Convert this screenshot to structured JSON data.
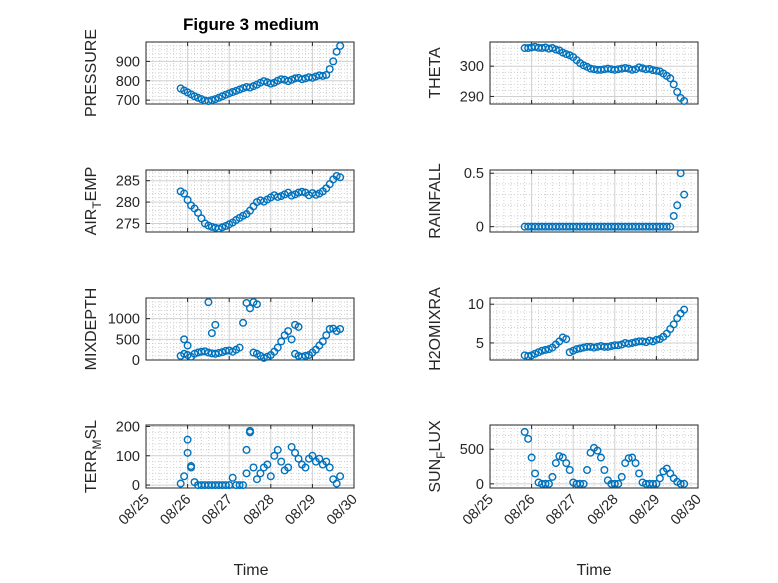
{
  "figure": {
    "title": "Figure 3 medium",
    "xlabel": "Time",
    "x_tick_labels": [
      "08/25",
      "08/26",
      "08/27",
      "08/28",
      "08/29",
      "08/30"
    ]
  },
  "colors": {
    "marker": "#0072BD",
    "axes": "#262626",
    "grid": "#d0d0d0",
    "background": "#ffffff"
  },
  "chart_data": [
    {
      "type": "scatter",
      "name": "PRESSURE",
      "title": "Figure 3 medium",
      "ylabel": "PRESSURE",
      "xlabel": "",
      "xlim": [
        "2021-08-25",
        "2021-08-30"
      ],
      "ylim": [
        680,
        1000
      ],
      "yticks": [
        700,
        800,
        900
      ],
      "ytick_labels": [
        "700",
        "800",
        "900"
      ],
      "grid": true,
      "x_dates": [
        "2021-08-25 20:00",
        "2021-08-25 22:00",
        "2021-08-26 00:00",
        "2021-08-26 02:00",
        "2021-08-26 04:00",
        "2021-08-26 06:00",
        "2021-08-26 08:00",
        "2021-08-26 10:00",
        "2021-08-26 12:00",
        "2021-08-26 14:00",
        "2021-08-26 16:00",
        "2021-08-26 18:00",
        "2021-08-26 20:00",
        "2021-08-26 22:00",
        "2021-08-27 00:00",
        "2021-08-27 02:00",
        "2021-08-27 04:00",
        "2021-08-27 06:00",
        "2021-08-27 08:00",
        "2021-08-27 10:00",
        "2021-08-27 12:00",
        "2021-08-27 14:00",
        "2021-08-27 16:00",
        "2021-08-27 18:00",
        "2021-08-27 20:00",
        "2021-08-27 22:00",
        "2021-08-28 00:00",
        "2021-08-28 02:00",
        "2021-08-28 04:00",
        "2021-08-28 06:00",
        "2021-08-28 08:00",
        "2021-08-28 10:00",
        "2021-08-28 12:00",
        "2021-08-28 14:00",
        "2021-08-28 16:00",
        "2021-08-28 18:00",
        "2021-08-28 20:00",
        "2021-08-28 22:00",
        "2021-08-29 00:00",
        "2021-08-29 02:00",
        "2021-08-29 04:00",
        "2021-08-29 06:00",
        "2021-08-29 08:00",
        "2021-08-29 10:00",
        "2021-08-29 12:00",
        "2021-08-29 14:00",
        "2021-08-29 16:00"
      ],
      "y": [
        760,
        750,
        740,
        730,
        720,
        712,
        705,
        698,
        695,
        700,
        705,
        712,
        720,
        728,
        735,
        742,
        748,
        755,
        762,
        768,
        765,
        772,
        780,
        790,
        798,
        792,
        785,
        790,
        800,
        808,
        805,
        798,
        805,
        812,
        815,
        808,
        812,
        818,
        815,
        822,
        828,
        825,
        830,
        860,
        900,
        950,
        980
      ]
    },
    {
      "type": "scatter",
      "name": "THETA",
      "ylabel": "THETA",
      "xlabel": "",
      "xlim": [
        "2021-08-25",
        "2021-08-30"
      ],
      "ylim": [
        287.5,
        308
      ],
      "yticks": [
        290,
        300
      ],
      "ytick_labels": [
        "290",
        "300"
      ],
      "grid": true,
      "x_dates": [
        "2021-08-25 20:00",
        "2021-08-25 22:00",
        "2021-08-26 00:00",
        "2021-08-26 02:00",
        "2021-08-26 04:00",
        "2021-08-26 06:00",
        "2021-08-26 08:00",
        "2021-08-26 10:00",
        "2021-08-26 12:00",
        "2021-08-26 14:00",
        "2021-08-26 16:00",
        "2021-08-26 18:00",
        "2021-08-26 20:00",
        "2021-08-26 22:00",
        "2021-08-27 00:00",
        "2021-08-27 02:00",
        "2021-08-27 04:00",
        "2021-08-27 06:00",
        "2021-08-27 08:00",
        "2021-08-27 10:00",
        "2021-08-27 12:00",
        "2021-08-27 14:00",
        "2021-08-27 16:00",
        "2021-08-27 18:00",
        "2021-08-27 20:00",
        "2021-08-27 22:00",
        "2021-08-28 00:00",
        "2021-08-28 02:00",
        "2021-08-28 04:00",
        "2021-08-28 06:00",
        "2021-08-28 08:00",
        "2021-08-28 10:00",
        "2021-08-28 12:00",
        "2021-08-28 14:00",
        "2021-08-28 16:00",
        "2021-08-28 18:00",
        "2021-08-28 20:00",
        "2021-08-28 22:00",
        "2021-08-29 00:00",
        "2021-08-29 02:00",
        "2021-08-29 04:00",
        "2021-08-29 06:00",
        "2021-08-29 08:00",
        "2021-08-29 10:00",
        "2021-08-29 12:00",
        "2021-08-29 14:00",
        "2021-08-29 16:00"
      ],
      "y": [
        306,
        306,
        306.2,
        306.4,
        306.1,
        306,
        306.2,
        305.8,
        306,
        305.5,
        305.2,
        304.5,
        304,
        303.6,
        303,
        302,
        301,
        300.3,
        299.8,
        299.2,
        299,
        298.8,
        298.8,
        299,
        299.2,
        299,
        298.8,
        299,
        299.2,
        299.4,
        299.2,
        298.8,
        299,
        299.6,
        299.3,
        299,
        299.1,
        298.7,
        298.5,
        298.3,
        297.6,
        296.8,
        296,
        294,
        291.5,
        289.5,
        288.5
      ]
    },
    {
      "type": "scatter",
      "name": "AIR_TEMP",
      "ylabel": "AIR_TEMP",
      "xlabel": "",
      "xlim": [
        "2021-08-25",
        "2021-08-30"
      ],
      "ylim": [
        273,
        287.5
      ],
      "yticks": [
        275,
        280,
        285
      ],
      "ytick_labels": [
        "275",
        "280",
        "285"
      ],
      "grid": true,
      "x_dates": [
        "2021-08-25 20:00",
        "2021-08-25 22:00",
        "2021-08-26 00:00",
        "2021-08-26 02:00",
        "2021-08-26 04:00",
        "2021-08-26 06:00",
        "2021-08-26 08:00",
        "2021-08-26 10:00",
        "2021-08-26 12:00",
        "2021-08-26 14:00",
        "2021-08-26 16:00",
        "2021-08-26 18:00",
        "2021-08-26 20:00",
        "2021-08-26 22:00",
        "2021-08-27 00:00",
        "2021-08-27 02:00",
        "2021-08-27 04:00",
        "2021-08-27 06:00",
        "2021-08-27 08:00",
        "2021-08-27 10:00",
        "2021-08-27 12:00",
        "2021-08-27 14:00",
        "2021-08-27 16:00",
        "2021-08-27 18:00",
        "2021-08-27 20:00",
        "2021-08-27 22:00",
        "2021-08-28 00:00",
        "2021-08-28 02:00",
        "2021-08-28 04:00",
        "2021-08-28 06:00",
        "2021-08-28 08:00",
        "2021-08-28 10:00",
        "2021-08-28 12:00",
        "2021-08-28 14:00",
        "2021-08-28 16:00",
        "2021-08-28 18:00",
        "2021-08-28 20:00",
        "2021-08-28 22:00",
        "2021-08-29 00:00",
        "2021-08-29 02:00",
        "2021-08-29 04:00",
        "2021-08-29 06:00",
        "2021-08-29 08:00",
        "2021-08-29 10:00",
        "2021-08-29 12:00",
        "2021-08-29 14:00",
        "2021-08-29 16:00"
      ],
      "y": [
        282.5,
        282,
        280.5,
        279.2,
        278.5,
        277.5,
        276.2,
        275,
        274.5,
        274.2,
        274,
        273.8,
        274.1,
        274.4,
        274.8,
        275.2,
        275.8,
        276.3,
        276.8,
        277.2,
        278,
        279,
        280,
        280.4,
        280.1,
        280.6,
        281.1,
        281.6,
        281.2,
        281.4,
        281.8,
        282.2,
        281.5,
        281.8,
        282.2,
        282.4,
        282.2,
        281.6,
        282.1,
        281.7,
        282,
        282.5,
        283.2,
        284.2,
        285.3,
        286.1,
        285.8
      ]
    },
    {
      "type": "scatter",
      "name": "RAINFALL",
      "ylabel": "RAINFALL",
      "xlabel": "",
      "xlim": [
        "2021-08-25",
        "2021-08-30"
      ],
      "ylim": [
        -0.05,
        0.53
      ],
      "yticks": [
        0,
        0.5
      ],
      "ytick_labels": [
        "0",
        "0.5"
      ],
      "grid": true,
      "x_dates": [
        "2021-08-25 20:00",
        "2021-08-25 22:00",
        "2021-08-26 00:00",
        "2021-08-26 02:00",
        "2021-08-26 04:00",
        "2021-08-26 06:00",
        "2021-08-26 08:00",
        "2021-08-26 10:00",
        "2021-08-26 12:00",
        "2021-08-26 14:00",
        "2021-08-26 16:00",
        "2021-08-26 18:00",
        "2021-08-26 20:00",
        "2021-08-26 22:00",
        "2021-08-27 00:00",
        "2021-08-27 02:00",
        "2021-08-27 04:00",
        "2021-08-27 06:00",
        "2021-08-27 08:00",
        "2021-08-27 10:00",
        "2021-08-27 12:00",
        "2021-08-27 14:00",
        "2021-08-27 16:00",
        "2021-08-27 18:00",
        "2021-08-27 20:00",
        "2021-08-27 22:00",
        "2021-08-28 00:00",
        "2021-08-28 02:00",
        "2021-08-28 04:00",
        "2021-08-28 06:00",
        "2021-08-28 08:00",
        "2021-08-28 10:00",
        "2021-08-28 12:00",
        "2021-08-28 14:00",
        "2021-08-28 16:00",
        "2021-08-28 18:00",
        "2021-08-28 20:00",
        "2021-08-28 22:00",
        "2021-08-29 00:00",
        "2021-08-29 02:00",
        "2021-08-29 04:00",
        "2021-08-29 06:00",
        "2021-08-29 08:00",
        "2021-08-29 10:00",
        "2021-08-29 12:00",
        "2021-08-29 14:00",
        "2021-08-29 16:00"
      ],
      "y": [
        0,
        0,
        0,
        0,
        0,
        0,
        0,
        0,
        0,
        0,
        0,
        0,
        0,
        0,
        0,
        0,
        0,
        0,
        0,
        0,
        0,
        0,
        0,
        0,
        0,
        0,
        0,
        0,
        0,
        0,
        0,
        0,
        0,
        0,
        0,
        0,
        0,
        0,
        0,
        0,
        0,
        0,
        0,
        0.1,
        0.2,
        0.5,
        0.3
      ]
    },
    {
      "type": "scatter",
      "name": "MIXDEPTH",
      "ylabel": "MIXDEPTH",
      "xlabel": "",
      "xlim": [
        "2021-08-25",
        "2021-08-30"
      ],
      "ylim": [
        0,
        1500
      ],
      "yticks": [
        0,
        500,
        1000
      ],
      "ytick_labels": [
        "0",
        "500",
        "1000"
      ],
      "grid": true,
      "x_dates": [
        "2021-08-25 20:00",
        "2021-08-25 22:00",
        "2021-08-26 00:00",
        "2021-08-26 02:00",
        "2021-08-26 04:00",
        "2021-08-26 06:00",
        "2021-08-26 08:00",
        "2021-08-26 10:00",
        "2021-08-26 12:00",
        "2021-08-26 14:00",
        "2021-08-26 16:00",
        "2021-08-26 18:00",
        "2021-08-26 20:00",
        "2021-08-26 22:00",
        "2021-08-27 00:00",
        "2021-08-27 02:00",
        "2021-08-27 04:00",
        "2021-08-27 06:00",
        "2021-08-27 08:00",
        "2021-08-27 10:00",
        "2021-08-27 12:00",
        "2021-08-27 14:00",
        "2021-08-27 16:00",
        "2021-08-27 18:00",
        "2021-08-27 20:00",
        "2021-08-27 22:00",
        "2021-08-28 00:00",
        "2021-08-28 02:00",
        "2021-08-28 04:00",
        "2021-08-28 06:00",
        "2021-08-28 08:00",
        "2021-08-28 10:00",
        "2021-08-28 12:00",
        "2021-08-28 14:00",
        "2021-08-28 16:00",
        "2021-08-28 18:00",
        "2021-08-28 20:00",
        "2021-08-28 22:00",
        "2021-08-29 00:00",
        "2021-08-29 02:00",
        "2021-08-29 04:00",
        "2021-08-29 06:00",
        "2021-08-29 08:00",
        "2021-08-29 10:00",
        "2021-08-29 12:00",
        "2021-08-29 14:00",
        "2021-08-29 16:00",
        "2021-08-26 12:00",
        "2021-08-26 14:00",
        "2021-08-26 16:00",
        "2021-08-27 14:00",
        "2021-08-27 16:00",
        "2021-08-28 14:00",
        "2021-08-28 16:00",
        "2021-08-25 22:00",
        "2021-08-26 00:00"
      ],
      "y": [
        100,
        150,
        120,
        80,
        150,
        180,
        200,
        210,
        180,
        160,
        150,
        170,
        190,
        220,
        230,
        200,
        250,
        300,
        900,
        1380,
        1250,
        180,
        150,
        100,
        50,
        80,
        120,
        200,
        300,
        450,
        600,
        700,
        500,
        150,
        100,
        80,
        100,
        120,
        180,
        250,
        350,
        450,
        600,
        750,
        760,
        700,
        750,
        1400,
        650,
        850,
        1400,
        1350,
        850,
        800,
        500,
        350
      ]
    },
    {
      "type": "scatter",
      "name": "H2OMIXRA",
      "ylabel": "H2OMIXRA",
      "xlabel": "",
      "xlim": [
        "2021-08-25",
        "2021-08-30"
      ],
      "ylim": [
        2.8,
        10.8
      ],
      "yticks": [
        5,
        10
      ],
      "ytick_labels": [
        "5",
        "10"
      ],
      "grid": true,
      "x_dates": [
        "2021-08-25 20:00",
        "2021-08-25 22:00",
        "2021-08-26 00:00",
        "2021-08-26 02:00",
        "2021-08-26 04:00",
        "2021-08-26 06:00",
        "2021-08-26 08:00",
        "2021-08-26 10:00",
        "2021-08-26 12:00",
        "2021-08-26 14:00",
        "2021-08-26 16:00",
        "2021-08-26 18:00",
        "2021-08-26 20:00",
        "2021-08-26 22:00",
        "2021-08-27 00:00",
        "2021-08-27 02:00",
        "2021-08-27 04:00",
        "2021-08-27 06:00",
        "2021-08-27 08:00",
        "2021-08-27 10:00",
        "2021-08-27 12:00",
        "2021-08-27 14:00",
        "2021-08-27 16:00",
        "2021-08-27 18:00",
        "2021-08-27 20:00",
        "2021-08-27 22:00",
        "2021-08-28 00:00",
        "2021-08-28 02:00",
        "2021-08-28 04:00",
        "2021-08-28 06:00",
        "2021-08-28 08:00",
        "2021-08-28 10:00",
        "2021-08-28 12:00",
        "2021-08-28 14:00",
        "2021-08-28 16:00",
        "2021-08-28 18:00",
        "2021-08-28 20:00",
        "2021-08-28 22:00",
        "2021-08-29 00:00",
        "2021-08-29 02:00",
        "2021-08-29 04:00",
        "2021-08-29 06:00",
        "2021-08-29 08:00",
        "2021-08-29 10:00",
        "2021-08-29 12:00",
        "2021-08-29 14:00",
        "2021-08-29 16:00"
      ],
      "y": [
        3.4,
        3.3,
        3.4,
        3.6,
        3.8,
        4,
        4.1,
        4.2,
        4.4,
        4.8,
        5.2,
        5.7,
        5.5,
        3.8,
        4,
        4.2,
        4.3,
        4.4,
        4.5,
        4.5,
        4.4,
        4.5,
        4.6,
        4.5,
        4.5,
        4.6,
        4.7,
        4.7,
        4.8,
        5,
        4.9,
        5,
        5.1,
        5.2,
        5.2,
        5.1,
        5.3,
        5.2,
        5.4,
        5.5,
        5.8,
        6.2,
        6.8,
        7.4,
        8.2,
        8.8,
        9.3
      ]
    },
    {
      "type": "scatter",
      "name": "TERR_MSL",
      "ylabel": "TERR_MSL",
      "xlabel": "Time",
      "xlim": [
        "2021-08-25",
        "2021-08-30"
      ],
      "ylim": [
        -10,
        205
      ],
      "yticks": [
        0,
        100,
        200
      ],
      "ytick_labels": [
        "0",
        "100",
        "200"
      ],
      "grid": true,
      "x_tick_labels": [
        "08/25",
        "08/26",
        "08/27",
        "08/28",
        "08/29",
        "08/30"
      ],
      "x_dates": [
        "2021-08-25 20:00",
        "2021-08-25 22:00",
        "2021-08-26 00:00",
        "2021-08-26 02:00",
        "2021-08-26 04:00",
        "2021-08-26 06:00",
        "2021-08-26 08:00",
        "2021-08-26 10:00",
        "2021-08-26 12:00",
        "2021-08-26 14:00",
        "2021-08-26 16:00",
        "2021-08-26 18:00",
        "2021-08-26 20:00",
        "2021-08-26 22:00",
        "2021-08-27 00:00",
        "2021-08-27 02:00",
        "2021-08-27 04:00",
        "2021-08-27 06:00",
        "2021-08-27 08:00",
        "2021-08-27 10:00",
        "2021-08-27 12:00",
        "2021-08-27 14:00",
        "2021-08-27 16:00",
        "2021-08-27 18:00",
        "2021-08-27 20:00",
        "2021-08-27 22:00",
        "2021-08-28 00:00",
        "2021-08-28 02:00",
        "2021-08-28 04:00",
        "2021-08-28 06:00",
        "2021-08-28 08:00",
        "2021-08-28 10:00",
        "2021-08-28 12:00",
        "2021-08-28 14:00",
        "2021-08-28 16:00",
        "2021-08-28 18:00",
        "2021-08-28 20:00",
        "2021-08-28 22:00",
        "2021-08-29 00:00",
        "2021-08-29 02:00",
        "2021-08-29 04:00",
        "2021-08-29 06:00",
        "2021-08-29 08:00",
        "2021-08-29 10:00",
        "2021-08-29 12:00",
        "2021-08-29 14:00",
        "2021-08-29 16:00",
        "2021-08-26 00:00",
        "2021-08-26 02:00",
        "2021-08-27 10:00",
        "2021-08-27 12:00"
      ],
      "y": [
        5,
        30,
        110,
        60,
        10,
        0,
        0,
        0,
        0,
        0,
        0,
        0,
        0,
        0,
        0,
        25,
        0,
        0,
        0,
        40,
        185,
        60,
        20,
        40,
        60,
        70,
        30,
        100,
        120,
        80,
        50,
        60,
        130,
        110,
        90,
        70,
        60,
        90,
        100,
        80,
        90,
        70,
        80,
        60,
        20,
        5,
        30,
        155,
        65,
        120,
        180
      ]
    },
    {
      "type": "scatter",
      "name": "SUN_FLUX",
      "ylabel": "SUN_FLUX",
      "xlabel": "Time",
      "xlim": [
        "2021-08-25",
        "2021-08-30"
      ],
      "ylim": [
        -60,
        850
      ],
      "yticks": [
        0,
        500
      ],
      "ytick_labels": [
        "0",
        "500"
      ],
      "grid": true,
      "x_tick_labels": [
        "08/25",
        "08/26",
        "08/27",
        "08/28",
        "08/29",
        "08/30"
      ],
      "x_dates": [
        "2021-08-25 20:00",
        "2021-08-25 22:00",
        "2021-08-26 00:00",
        "2021-08-26 02:00",
        "2021-08-26 04:00",
        "2021-08-26 06:00",
        "2021-08-26 08:00",
        "2021-08-26 10:00",
        "2021-08-26 12:00",
        "2021-08-26 14:00",
        "2021-08-26 16:00",
        "2021-08-26 18:00",
        "2021-08-26 20:00",
        "2021-08-26 22:00",
        "2021-08-27 00:00",
        "2021-08-27 02:00",
        "2021-08-27 04:00",
        "2021-08-27 06:00",
        "2021-08-27 08:00",
        "2021-08-27 10:00",
        "2021-08-27 12:00",
        "2021-08-27 14:00",
        "2021-08-27 16:00",
        "2021-08-27 18:00",
        "2021-08-27 20:00",
        "2021-08-27 22:00",
        "2021-08-28 00:00",
        "2021-08-28 02:00",
        "2021-08-28 04:00",
        "2021-08-28 06:00",
        "2021-08-28 08:00",
        "2021-08-28 10:00",
        "2021-08-28 12:00",
        "2021-08-28 14:00",
        "2021-08-28 16:00",
        "2021-08-28 18:00",
        "2021-08-28 20:00",
        "2021-08-28 22:00",
        "2021-08-29 00:00",
        "2021-08-29 02:00",
        "2021-08-29 04:00",
        "2021-08-29 06:00",
        "2021-08-29 08:00",
        "2021-08-29 10:00",
        "2021-08-29 12:00",
        "2021-08-29 14:00",
        "2021-08-29 16:00"
      ],
      "y": [
        750,
        650,
        380,
        150,
        20,
        0,
        0,
        0,
        100,
        300,
        400,
        380,
        300,
        200,
        20,
        0,
        0,
        0,
        200,
        450,
        520,
        480,
        380,
        200,
        50,
        0,
        0,
        0,
        100,
        300,
        370,
        380,
        300,
        150,
        20,
        0,
        0,
        0,
        0,
        80,
        180,
        220,
        150,
        80,
        30,
        0,
        0
      ]
    }
  ]
}
